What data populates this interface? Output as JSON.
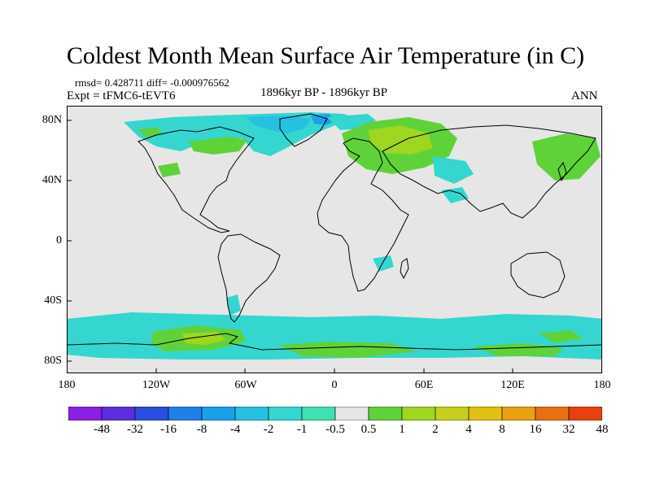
{
  "title": "Coldest Month Mean Surface Air Temperature (in C)",
  "stats_line": "rmsd= 0.428711 diff= -0.000976562",
  "experiment": "Expt = tFMC6-tEVT6",
  "period": "1896kyr BP - 1896kyr BP",
  "season": "ANN",
  "lat_labels": [
    "80N",
    "40N",
    "0",
    "40S",
    "80S"
  ],
  "lon_labels": [
    "180",
    "120W",
    "60W",
    "0",
    "60E",
    "120E",
    "180"
  ],
  "colorbar": {
    "labels": [
      "-48",
      "-32",
      "-16",
      "-8",
      "-4",
      "-2",
      "-1",
      "-0.5",
      "0.5",
      "1",
      "2",
      "4",
      "8",
      "16",
      "32",
      "48"
    ],
    "colors": [
      "#8a1fe8",
      "#5b2ce0",
      "#2a4fe0",
      "#1f7fe8",
      "#1aa0e8",
      "#26c0e0",
      "#35d6cf",
      "#40e0b0",
      "#e6e6e6",
      "#5fd23a",
      "#9ed620",
      "#c6d01a",
      "#e0c010",
      "#e8a010",
      "#e87010",
      "#e84010"
    ]
  },
  "map_colors": {
    "background": "#e6e6e6",
    "anomaly_negative_small": "#35d6cf",
    "anomaly_negative_medium": "#26c0e0",
    "anomaly_negative_large": "#1aa0e8",
    "anomaly_positive_small": "#5fd23a",
    "anomaly_positive_medium": "#9ed620",
    "coastline": "#000000"
  }
}
